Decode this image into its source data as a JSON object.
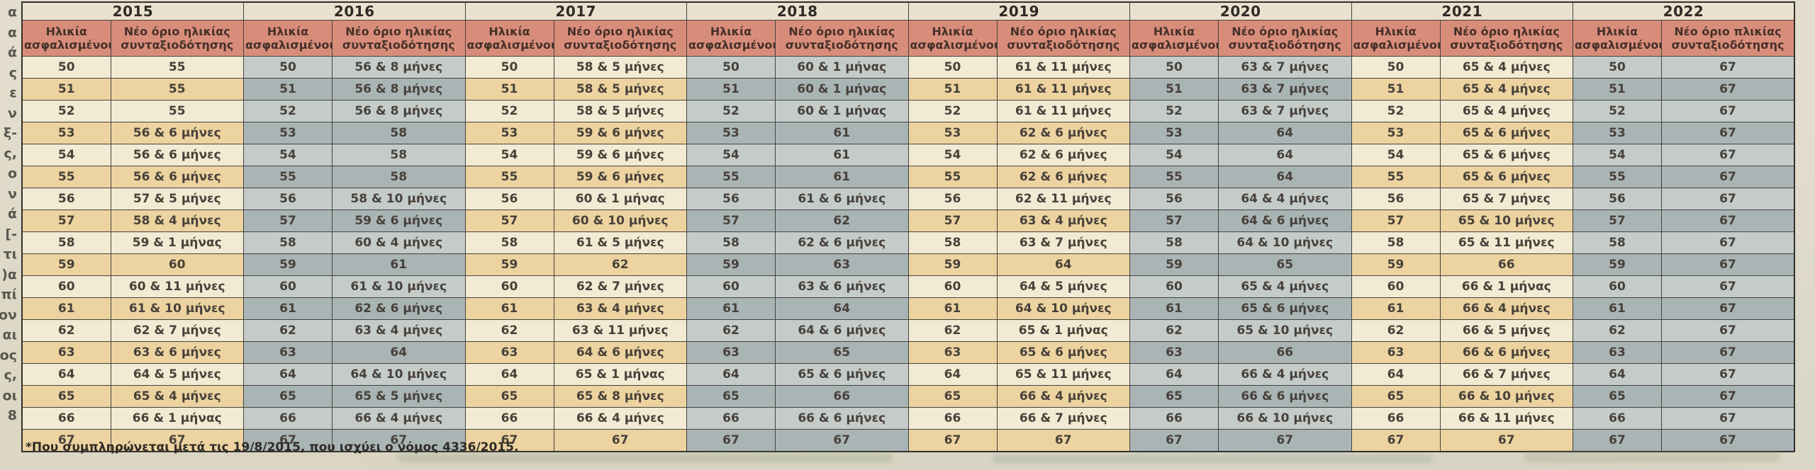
{
  "colors": {
    "page-bg": "#e3ddcd",
    "year-bg": "#eae2cf",
    "header-bg": "#d88d7a",
    "header-ink": "#45302a",
    "tan-light": "#f2ead2",
    "tan-dark": "#edd3a0",
    "gray-light": "#c4cbc9",
    "gray-dark": "#a9b4b5",
    "ink": "#47413a",
    "ink-dark": "#2f2b26",
    "border": "#45433e",
    "border-strong": "#32302b",
    "margin-text": "#5a564e"
  },
  "margin_fragments": [
    "α",
    "α",
    "ά",
    "ς",
    "ε",
    "ν",
    "ξ-",
    "ς,",
    "ο",
    "ν",
    "ά",
    "[-",
    "τι",
    ")α",
    "πί",
    "ον",
    "αι",
    "ος",
    "ς,",
    "οι",
    "8"
  ],
  "footnote": "*Που συμπληρώνεται μετά τις 19/8/2015, που ισχύει ο νόμος 4336/2015.",
  "table": {
    "ages": [
      "50",
      "51",
      "52",
      "53",
      "54",
      "55",
      "56",
      "57",
      "58",
      "59",
      "60",
      "61",
      "62",
      "63",
      "64",
      "65",
      "66",
      "67"
    ],
    "years": [
      {
        "year": "2015",
        "age_header": "Ηλικία ασφαλισμένου*",
        "limit_header": "Νέο όριο ηλικίας συνταξιοδότησης",
        "scheme": "tan",
        "limits": [
          "55",
          "55",
          "55",
          "56 & 6 μήνες",
          "56 & 6 μήνες",
          "56 & 6 μήνες",
          "57 & 5 μήνες",
          "58 & 4 μήνες",
          "59 & 1 μήνας",
          "60",
          "60 & 11 μήνες",
          "61 & 10 μήνες",
          "62 & 7 μήνες",
          "63 & 6 μήνες",
          "64 & 5 μήνες",
          "65 & 4 μήνες",
          "66 & 1 μήνας",
          "67"
        ]
      },
      {
        "year": "2016",
        "age_header": "Ηλικία ασφαλισμένου",
        "limit_header": "Νέο όριο ηλικίας συνταξιοδότησης",
        "scheme": "gray",
        "limits": [
          "56 & 8 μήνες",
          "56 & 8 μήνες",
          "56 & 8 μήνες",
          "58",
          "58",
          "58",
          "58 & 10 μήνες",
          "59 & 6 μήνες",
          "60 & 4 μήνες",
          "61",
          "61 & 10 μήνες",
          "62 & 6 μήνες",
          "63 & 4 μήνες",
          "64",
          "64 & 10 μήνες",
          "65 & 5 μήνες",
          "66 & 4 μήνες",
          "67"
        ]
      },
      {
        "year": "2017",
        "age_header": "Ηλικία ασφαλισμένου",
        "limit_header": "Νέο όριο ηλικίας συνταξιοδότησης",
        "scheme": "tan",
        "limits": [
          "58 & 5 μήνες",
          "58 & 5 μήνες",
          "58 & 5 μήνες",
          "59 & 6 μήνες",
          "59 & 6 μήνες",
          "59 & 6 μήνες",
          "60 & 1 μήνας",
          "60 & 10 μήνες",
          "61 & 5 μήνες",
          "62",
          "62 & 7 μήνες",
          "63 & 4 μήνες",
          "63 & 11 μήνες",
          "64 & 6 μήνες",
          "65 & 1 μήνας",
          "65 & 8 μήνες",
          "66 & 4 μήνες",
          "67"
        ]
      },
      {
        "year": "2018",
        "age_header": "Ηλικία ασφαλισμένου*",
        "limit_header": "Νέο όριο ηλικίας συνταξιοδότησης",
        "scheme": "gray",
        "limits": [
          "60 & 1 μήνας",
          "60 & 1 μήνας",
          "60 & 1 μήνας",
          "61",
          "61",
          "61",
          "61 & 6 μήνες",
          "62",
          "62 & 6 μήνες",
          "63",
          "63 & 6 μήνες",
          "64",
          "64 & 6 μήνες",
          "65",
          "65 & 6 μήνες",
          "66",
          "66 & 6 μήνες",
          "67"
        ]
      },
      {
        "year": "2019",
        "age_header": "Ηλικία ασφαλισμένου",
        "limit_header": "Νέο όριο ηλικίας συνταξιοδότησης",
        "scheme": "tan",
        "limits": [
          "61 & 11 μήνες",
          "61 & 11 μήνες",
          "61 & 11 μήνες",
          "62 & 6 μήνες",
          "62 & 6 μήνες",
          "62 & 6 μήνες",
          "62 & 11 μήνες",
          "63 & 4 μήνες",
          "63 & 7 μήνες",
          "64",
          "64 & 5 μήνες",
          "64 & 10 μήνες",
          "65 & 1 μήνας",
          "65 & 6 μήνες",
          "65 & 11 μήνες",
          "66 & 4 μήνες",
          "66 & 7 μήνες",
          "67"
        ]
      },
      {
        "year": "2020",
        "age_header": "Ηλικία ασφαλισμένου",
        "limit_header": "Νέο όριο ηλικίας συνταξιοδότησης",
        "scheme": "gray",
        "limits": [
          "63 & 7 μήνες",
          "63 & 7 μήνες",
          "63 & 7 μήνες",
          "64",
          "64",
          "64",
          "64 & 4 μήνες",
          "64 & 6 μήνες",
          "64 & 10 μήνες",
          "65",
          "65 & 4 μήνες",
          "65 & 6 μήνες",
          "65 & 10 μήνες",
          "66",
          "66 & 4 μήνες",
          "66 & 6 μήνες",
          "66 & 10 μήνες",
          "67"
        ]
      },
      {
        "year": "2021",
        "age_header": "Ηλικία ασφαλισμένου",
        "limit_header": "Νέο όριο ηλικίας συνταξιοδότησης",
        "scheme": "tan",
        "limits": [
          "65 & 4 μήνες",
          "65 & 4 μήνες",
          "65 & 4 μήνες",
          "65 & 6 μήνες",
          "65 & 6 μήνες",
          "65 & 6 μήνες",
          "65 & 7 μήνες",
          "65 & 10 μήνες",
          "65 & 11 μήνες",
          "66",
          "66 & 1 μήνας",
          "66 & 4 μήνες",
          "66 & 5 μήνες",
          "66 & 6 μήνες",
          "66 & 7 μήνες",
          "66 & 10 μήνες",
          "66 & 11 μήνες",
          "67"
        ]
      },
      {
        "year": "2022",
        "age_header": "Ηλικία ασφαλισμένου",
        "limit_header": "Νέο όριο πλικίας συνταξιοδότησης",
        "scheme": "gray",
        "limits": [
          "67",
          "67",
          "67",
          "67",
          "67",
          "67",
          "67",
          "67",
          "67",
          "67",
          "67",
          "67",
          "67",
          "67",
          "67",
          "67",
          "67",
          "67"
        ]
      }
    ]
  }
}
